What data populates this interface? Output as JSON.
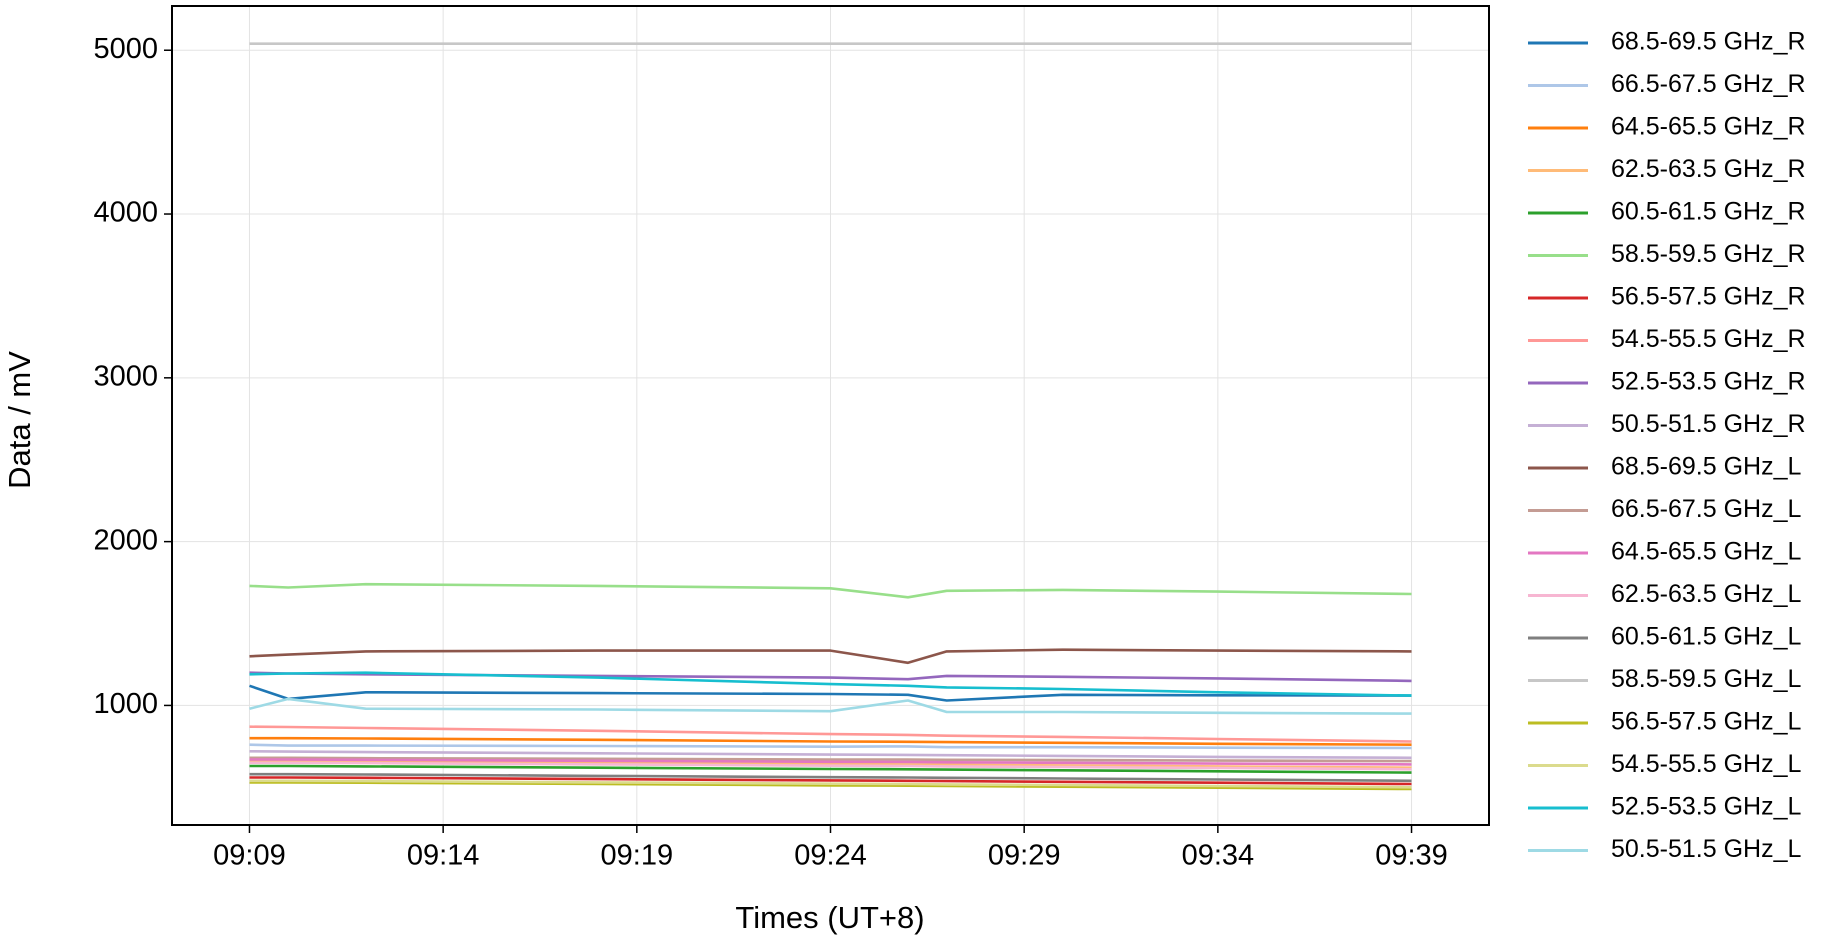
{
  "chart_data": {
    "type": "line",
    "xlabel": "Times (UT+8)",
    "ylabel": "Data / mV",
    "x": [
      "09:09",
      "09:10",
      "09:12",
      "09:18",
      "09:24",
      "09:26",
      "09:27",
      "09:30",
      "09:34",
      "09:39"
    ],
    "xlim": [
      "09:07",
      "09:41"
    ],
    "xticks": [
      "09:09",
      "09:14",
      "09:19",
      "09:24",
      "09:29",
      "09:34",
      "09:39"
    ],
    "ylim": [
      270,
      5270
    ],
    "yticks": [
      1000,
      2000,
      3000,
      4000,
      5000
    ],
    "grid": true,
    "legend": "outside right",
    "series": [
      {
        "name": "68.5-69.5 GHz_R",
        "color": "#1f77b4",
        "values": [
          1120,
          1040,
          1080,
          1075,
          1070,
          1065,
          1030,
          1065,
          1062,
          1060
        ]
      },
      {
        "name": "66.5-67.5 GHz_R",
        "color": "#aec7e8",
        "values": [
          760,
          755,
          755,
          752,
          748,
          750,
          745,
          745,
          742,
          740
        ]
      },
      {
        "name": "64.5-65.5 GHz_R",
        "color": "#ff7f0e",
        "values": [
          800,
          800,
          798,
          790,
          780,
          778,
          776,
          772,
          766,
          760
        ]
      },
      {
        "name": "62.5-63.5 GHz_R",
        "color": "#ffbb78",
        "values": [
          660,
          660,
          658,
          650,
          642,
          640,
          638,
          634,
          628,
          620
        ]
      },
      {
        "name": "60.5-61.5 GHz_R",
        "color": "#2ca02c",
        "values": [
          630,
          630,
          628,
          620,
          612,
          610,
          608,
          604,
          598,
          590
        ]
      },
      {
        "name": "58.5-59.5 GHz_R",
        "color": "#98df8a",
        "values": [
          1730,
          1720,
          1740,
          1730,
          1715,
          1660,
          1700,
          1705,
          1695,
          1680
        ]
      },
      {
        "name": "56.5-57.5 GHz_R",
        "color": "#d62728",
        "values": [
          560,
          560,
          558,
          550,
          542,
          540,
          538,
          534,
          528,
          520
        ]
      },
      {
        "name": "54.5-55.5 GHz_R",
        "color": "#ff9896",
        "values": [
          870,
          868,
          862,
          845,
          825,
          820,
          815,
          808,
          795,
          780
        ]
      },
      {
        "name": "52.5-53.5 GHz_R",
        "color": "#9467bd",
        "values": [
          1200,
          1195,
          1190,
          1180,
          1170,
          1160,
          1180,
          1175,
          1165,
          1150
        ]
      },
      {
        "name": "50.5-51.5 GHz_R",
        "color": "#c5b0d5",
        "values": [
          720,
          718,
          715,
          708,
          700,
          698,
          696,
          692,
          686,
          680
        ]
      },
      {
        "name": "68.5-69.5 GHz_L",
        "color": "#8c564b",
        "values": [
          1300,
          1310,
          1330,
          1335,
          1335,
          1260,
          1330,
          1340,
          1335,
          1330
        ]
      },
      {
        "name": "66.5-67.5 GHz_L",
        "color": "#c49c94",
        "values": [
          680,
          680,
          678,
          674,
          670,
          669,
          668,
          666,
          663,
          660
        ]
      },
      {
        "name": "64.5-65.5 GHz_L",
        "color": "#e377c2",
        "values": [
          670,
          670,
          668,
          662,
          656,
          655,
          653,
          650,
          645,
          640
        ]
      },
      {
        "name": "62.5-63.5 GHz_L",
        "color": "#f7b6d2",
        "values": [
          650,
          650,
          648,
          640,
          632,
          630,
          628,
          624,
          618,
          610
        ]
      },
      {
        "name": "60.5-61.5 GHz_L",
        "color": "#7f7f7f",
        "values": [
          580,
          580,
          578,
          570,
          562,
          560,
          558,
          554,
          548,
          540
        ]
      },
      {
        "name": "58.5-59.5 GHz_L",
        "color": "#c7c7c7",
        "values": [
          5040,
          5040,
          5040,
          5040,
          5040,
          5040,
          5040,
          5040,
          5040,
          5040
        ]
      },
      {
        "name": "56.5-57.5 GHz_L",
        "color": "#bcbd22",
        "values": [
          530,
          530,
          528,
          520,
          512,
          510,
          508,
          504,
          498,
          490
        ]
      },
      {
        "name": "54.5-55.5 GHz_L",
        "color": "#dbdb8d",
        "values": [
          540,
          540,
          538,
          530,
          522,
          520,
          518,
          514,
          508,
          500
        ]
      },
      {
        "name": "52.5-53.5 GHz_L",
        "color": "#17becf",
        "values": [
          1190,
          1195,
          1200,
          1170,
          1130,
          1120,
          1110,
          1100,
          1080,
          1060
        ]
      },
      {
        "name": "50.5-51.5 GHz_L",
        "color": "#9edae5",
        "values": [
          980,
          1040,
          980,
          975,
          965,
          1030,
          960,
          960,
          955,
          950
        ]
      }
    ]
  }
}
